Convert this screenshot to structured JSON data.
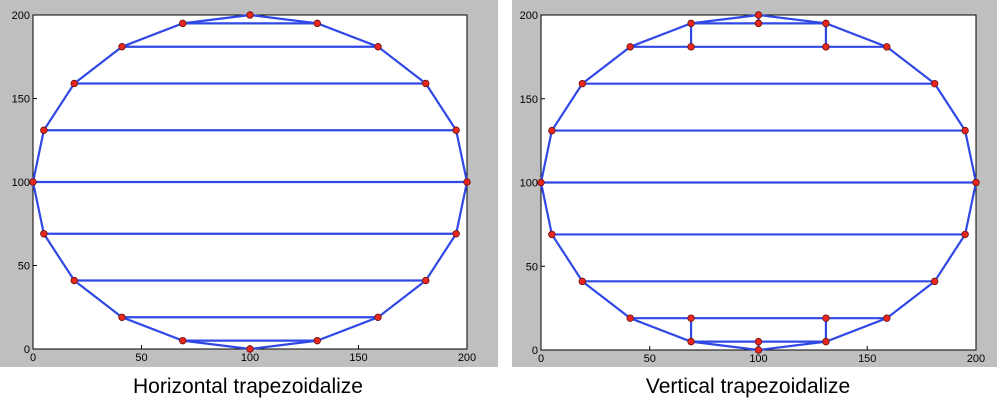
{
  "chart_data": [
    {
      "type": "line",
      "title": "Horizontal trapezoidalize",
      "xlim": [
        0,
        200
      ],
      "ylim": [
        0,
        200
      ],
      "xticks": [
        0,
        50,
        100,
        150,
        200
      ],
      "yticks": [
        0,
        50,
        100,
        150,
        200
      ],
      "series": [
        {
          "type": "line",
          "color": "#3049e6",
          "x": [
            100,
            131,
            159,
            181,
            195,
            200,
            195,
            181,
            159,
            131,
            100,
            69,
            41,
            19,
            5,
            0,
            5,
            19,
            41,
            69,
            100
          ],
          "y": [
            200,
            195,
            181,
            159,
            131,
            100,
            69,
            41,
            19,
            5,
            0,
            5,
            19,
            41,
            69,
            100,
            131,
            159,
            181,
            195,
            200
          ]
        },
        {
          "type": "line",
          "color": "#3049e6",
          "x": [
            69,
            131,
            null,
            41,
            159,
            null,
            19,
            181,
            null,
            5,
            195,
            null,
            0,
            200,
            null,
            5,
            195,
            null,
            19,
            181,
            null,
            41,
            159,
            null,
            69,
            131
          ],
          "y": [
            195,
            195,
            null,
            181,
            181,
            null,
            159,
            159,
            null,
            131,
            131,
            null,
            100,
            100,
            null,
            69,
            69,
            null,
            41,
            41,
            null,
            19,
            19,
            null,
            5,
            5
          ]
        },
        {
          "type": "scatter",
          "color": "#e8281e",
          "x": [
            100,
            131,
            159,
            181,
            195,
            200,
            195,
            181,
            159,
            131,
            100,
            69,
            41,
            19,
            5,
            0,
            5,
            19,
            41,
            69
          ],
          "y": [
            200,
            195,
            181,
            159,
            131,
            100,
            69,
            41,
            19,
            5,
            0,
            5,
            19,
            41,
            69,
            100,
            131,
            159,
            181,
            195
          ]
        }
      ]
    },
    {
      "type": "line",
      "title": "Vertical trapezoidalize",
      "xlim": [
        0,
        200
      ],
      "ylim": [
        0,
        200
      ],
      "xticks": [
        0,
        50,
        100,
        150,
        200
      ],
      "yticks": [
        0,
        50,
        100,
        150,
        200
      ],
      "series": [
        {
          "type": "line",
          "color": "#3049e6",
          "x": [
            100,
            131,
            159,
            181,
            195,
            200,
            195,
            181,
            159,
            131,
            100,
            69,
            41,
            19,
            5,
            0,
            5,
            19,
            41,
            69,
            100
          ],
          "y": [
            200,
            195,
            181,
            159,
            131,
            100,
            69,
            41,
            19,
            5,
            0,
            5,
            19,
            41,
            69,
            100,
            131,
            159,
            181,
            195,
            200
          ]
        },
        {
          "type": "line",
          "color": "#3049e6",
          "x": [
            69,
            131,
            null,
            41,
            159,
            null,
            19,
            181,
            null,
            5,
            195,
            null,
            0,
            200,
            null,
            5,
            195,
            null,
            19,
            181,
            null,
            41,
            159,
            null,
            69,
            131,
            null,
            69,
            69,
            null,
            131,
            131,
            null,
            100,
            100,
            null,
            69,
            69,
            null,
            131,
            131,
            null,
            100,
            100
          ],
          "y": [
            195,
            195,
            null,
            181,
            181,
            null,
            159,
            159,
            null,
            131,
            131,
            null,
            100,
            100,
            null,
            69,
            69,
            null,
            41,
            41,
            null,
            19,
            19,
            null,
            5,
            5,
            null,
            181,
            195,
            null,
            181,
            195,
            null,
            195,
            200,
            null,
            5,
            19,
            null,
            5,
            19,
            null,
            0,
            5
          ]
        },
        {
          "type": "scatter",
          "color": "#e8281e",
          "x": [
            100,
            131,
            159,
            181,
            195,
            200,
            195,
            181,
            159,
            131,
            100,
            69,
            41,
            19,
            5,
            0,
            5,
            19,
            41,
            69,
            100,
            69,
            131,
            69,
            131,
            100
          ],
          "y": [
            200,
            195,
            181,
            159,
            131,
            100,
            69,
            41,
            19,
            5,
            0,
            5,
            19,
            41,
            69,
            100,
            131,
            159,
            181,
            195,
            195,
            181,
            181,
            19,
            19,
            5
          ]
        }
      ]
    }
  ]
}
